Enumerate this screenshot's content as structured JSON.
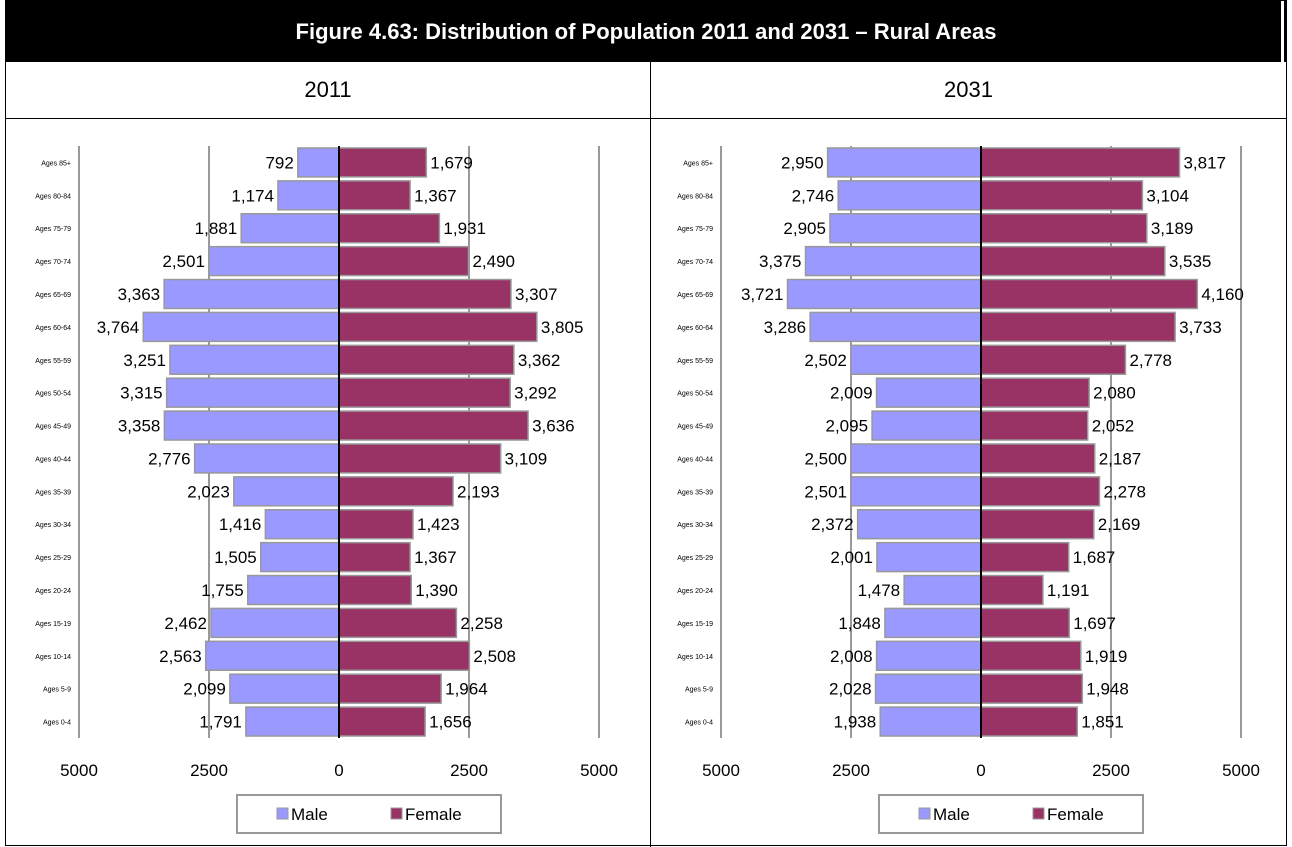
{
  "figure_title": "Figure 4.63: Distribution of Population 2011 and 2031 – Rural Areas",
  "colors": {
    "male": "#9999ff",
    "female": "#993366",
    "bar_edge": "#999999",
    "grid": "#999999"
  },
  "chart_data": [
    {
      "type": "bar",
      "title": "2011",
      "categories": [
        "Ages 85+",
        "Ages 80-84",
        "Ages 75-79",
        "Ages 70-74",
        "Ages 65-69",
        "Ages 60-64",
        "Ages 55-59",
        "Ages 50-54",
        "Ages 45-49",
        "Ages 40-44",
        "Ages 35-39",
        "Ages 30-34",
        "Ages 25-29",
        "Ages 20-24",
        "Ages 15-19",
        "Ages 10-14",
        "Ages 5-9",
        "Ages 0-4"
      ],
      "series": [
        {
          "name": "Male",
          "values": [
            792,
            1174,
            1881,
            2501,
            3363,
            3764,
            3251,
            3315,
            3358,
            2776,
            2023,
            1416,
            1505,
            1755,
            2462,
            2563,
            2099,
            1791
          ],
          "labels": [
            "792",
            "1,174",
            "1,881",
            "2,501",
            "3,363",
            "3,764",
            "3,251",
            "3,315",
            "3,358",
            "2,776",
            "2,023",
            "1,416",
            "1,505",
            "1,755",
            "2,462",
            "2,563",
            "2,099",
            "1,791"
          ]
        },
        {
          "name": "Female",
          "values": [
            1679,
            1367,
            1931,
            2490,
            3307,
            3805,
            3362,
            3292,
            3636,
            3109,
            2193,
            1423,
            1367,
            1390,
            2258,
            2508,
            1964,
            1656
          ],
          "labels": [
            "1,679",
            "1,367",
            "1,931",
            "2,490",
            "3,307",
            "3,805",
            "3,362",
            "3,292",
            "3,636",
            "3,109",
            "2,193",
            "1,423",
            "1,367",
            "1,390",
            "2,258",
            "2,508",
            "1,964",
            "1,656"
          ]
        }
      ],
      "xlim": [
        -5000,
        5000
      ],
      "x_ticks": [
        "5000",
        "2500",
        "0",
        "2500",
        "5000"
      ],
      "grid": true,
      "legend": "bottom"
    },
    {
      "type": "bar",
      "title": "2031",
      "categories": [
        "Ages 85+",
        "Ages 80-84",
        "Ages 75-79",
        "Ages 70-74",
        "Ages 65-69",
        "Ages 60-64",
        "Ages 55-59",
        "Ages 50-54",
        "Ages 45-49",
        "Ages 40-44",
        "Ages 35-39",
        "Ages 30-34",
        "Ages 25-29",
        "Ages 20-24",
        "Ages 15-19",
        "Ages 10-14",
        "Ages 5-9",
        "Ages 0-4"
      ],
      "series": [
        {
          "name": "Male",
          "values": [
            2950,
            2746,
            2905,
            3375,
            3721,
            3286,
            2502,
            2009,
            2095,
            2500,
            2501,
            2372,
            2001,
            1478,
            1848,
            2008,
            2028,
            1938
          ],
          "labels": [
            "2,950",
            "2,746",
            "2,905",
            "3,375",
            "3,721",
            "3,286",
            "2,502",
            "2,009",
            "2,095",
            "2,500",
            "2,501",
            "2,372",
            "2,001",
            "1,478",
            "1,848",
            "2,008",
            "2,028",
            "1,938"
          ]
        },
        {
          "name": "Female",
          "values": [
            3817,
            3104,
            3189,
            3535,
            4160,
            3733,
            2778,
            2080,
            2052,
            2187,
            2278,
            2169,
            1687,
            1191,
            1697,
            1919,
            1948,
            1851
          ],
          "labels": [
            "3,817",
            "3,104",
            "3,189",
            "3,535",
            "4,160",
            "3,733",
            "2,778",
            "2,080",
            "2,052",
            "2,187",
            "2,278",
            "2,169",
            "1,687",
            "1,191",
            "1,697",
            "1,919",
            "1,948",
            "1,851"
          ]
        }
      ],
      "xlim": [
        -5000,
        5000
      ],
      "x_ticks": [
        "5000",
        "2500",
        "0",
        "2500",
        "5000"
      ],
      "grid": true,
      "legend": "bottom"
    }
  ]
}
